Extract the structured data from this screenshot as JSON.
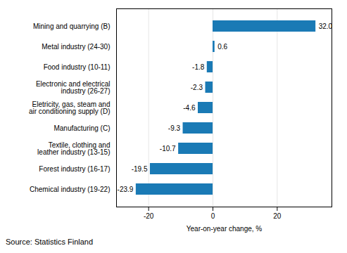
{
  "chart_data": {
    "type": "bar",
    "orientation": "horizontal",
    "categories": [
      "Mining and quarrying (B)",
      "Metal industry (24-30)",
      "Food industry (10-11)",
      "Electronic and electrical\nindustry (26-27)",
      "Eletricity, gas, steam and\nair conditioning supply (D)",
      "Manufacturing (C)",
      "Textile, clothing and\nleather industry (13-15)",
      "Forest industry (16-17)",
      "Chemical industry (19-22)"
    ],
    "values": [
      32.0,
      0.6,
      -1.8,
      -2.3,
      -4.6,
      -9.3,
      -10.7,
      -19.5,
      -23.9
    ],
    "value_labels": [
      "32.0",
      "0.6",
      "-1.8",
      "-2.3",
      "-4.6",
      "-9.3",
      "-10.7",
      "-19.5",
      "-23.9"
    ],
    "data_labels": true,
    "color": "#1a7ab5",
    "xlabel": "Year-on-year change, %",
    "xlim": [
      -30,
      37
    ],
    "xticks": [
      -20,
      0,
      20
    ],
    "grid": true,
    "annotations": [
      "Source: Statistics Finland"
    ]
  }
}
